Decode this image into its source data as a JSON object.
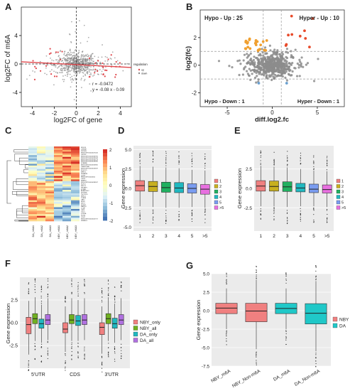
{
  "chart_data": [
    {
      "panel": "A",
      "type": "scatter",
      "xlabel": "log2FC of gene",
      "ylabel": "log2FC of m6A",
      "xlim": [
        -5,
        5
      ],
      "ylim": [
        -6,
        8
      ],
      "xticks": [
        "-4",
        "-2",
        "0",
        "2",
        "4"
      ],
      "yticks": [
        "-4",
        "0",
        "4"
      ],
      "annotation_r": "r = -0.0472",
      "annotation_eq": "y = -0.08 x - 0.09",
      "legend_title": "regulation",
      "legend_items": [
        "up",
        "down"
      ],
      "regression_slope": -0.08,
      "regression_intercept": -0.09,
      "colors": {
        "points": "#8a8a8a",
        "highlight": "#e0474c",
        "line": "#e0474c"
      }
    },
    {
      "panel": "B",
      "type": "scatter",
      "xlabel": "diff.log2.fc",
      "ylabel": "log2(fc)",
      "xlim": [
        -8,
        8
      ],
      "ylim": [
        -3,
        4
      ],
      "xticks": [
        "-5",
        "0",
        "5"
      ],
      "yticks": [
        "-2",
        "0",
        "2"
      ],
      "quadrants": [
        "Hypo - Up : 25",
        "Hyper - Up : 10",
        "Hypo - Down : 1",
        "Hyper - Down : 1"
      ],
      "colors": {
        "points": "#8c8c8c",
        "hypo_up": "#f0a030",
        "hyper_up": "#e84a2a"
      }
    },
    {
      "panel": "C",
      "type": "heatmap",
      "rows": [
        "RGS14",
        "CHRNE",
        "ZBTB20",
        "ENSSCRT00000027445",
        "CNTN5",
        "ENSSCRT00000034765",
        "ENSSCRT00000035548",
        "ENSSCRT00000030143",
        "ENSSCRT00000028390",
        "SCARA5",
        "ENSSCRT00000032850",
        "TMEM176A",
        "ENSSCRT00000025947",
        "KLHDC1",
        "MRPL1",
        "SEMA7A",
        "CDH3",
        "ENSSCRT00000001",
        "OSTN",
        "NMRK2",
        "ENSSCRT00000036947",
        "KLHL6",
        "MFCL1",
        "SRGAP1",
        "KCNB1",
        "ADAMTS12",
        "SPTBN5",
        "TBC1D15",
        "NHSL1",
        "TUBB6",
        "GAT1",
        "RFX8",
        "KIF17",
        "FOXD1",
        "MAPK4",
        "CLMP",
        "GRIK",
        "GJC2",
        "STK38L",
        "PLIN3",
        "CDH7",
        "ENSSCRT00000041757",
        "DIRREL1"
      ],
      "columns": [
        "DA_m6A1",
        "DA_m6A2",
        "DA_m6A3",
        "NBY_m6A1",
        "NBY_m6A2",
        "NBY_m6A3"
      ],
      "scale_ticks": [
        "2",
        "1",
        "0",
        "-1",
        "-2"
      ],
      "colors": {
        "high": "#d73027",
        "mid": "#ffffbf",
        "low": "#4575b4"
      }
    },
    {
      "panel": "D",
      "type": "box",
      "categories": [
        "1",
        "2",
        "3",
        "4",
        "5",
        ">5"
      ],
      "ylabel": "Gene expression",
      "ylim": [
        -5.5,
        5.5
      ],
      "yticks": [
        "-5.0",
        "-2.5",
        "0.0",
        "2.5",
        "5.0"
      ],
      "legend_items": [
        "1",
        "2",
        "3",
        "4",
        "5",
        ">5"
      ],
      "stats": [
        {
          "q1": -0.35,
          "median": 0.35,
          "q3": 1.0,
          "wlo": -2.3,
          "whi": 2.9
        },
        {
          "q1": -0.4,
          "median": 0.25,
          "q3": 0.9,
          "wlo": -2.4,
          "whi": 2.8
        },
        {
          "q1": -0.5,
          "median": 0.1,
          "q3": 0.8,
          "wlo": -2.5,
          "whi": 2.7
        },
        {
          "q1": -0.55,
          "median": 0.05,
          "q3": 0.75,
          "wlo": -2.5,
          "whi": 2.6
        },
        {
          "q1": -0.6,
          "median": 0.0,
          "q3": 0.6,
          "wlo": -2.4,
          "whi": 2.4
        },
        {
          "q1": -0.75,
          "median": -0.1,
          "q3": 0.5,
          "wlo": -2.5,
          "whi": 2.3
        }
      ],
      "colors": [
        "#f08080",
        "#c8b020",
        "#20b060",
        "#20b8c0",
        "#7a9cf0",
        "#e870e0"
      ]
    },
    {
      "panel": "E",
      "type": "box",
      "categories": [
        "1",
        "2",
        "3",
        "4",
        "5",
        ">5"
      ],
      "ylabel": "Gene expression",
      "ylim": [
        -5.5,
        5.5
      ],
      "yticks": [
        "-2.5",
        "0.0",
        "2.5"
      ],
      "legend_items": [
        "1",
        "2",
        "3",
        "4",
        "5",
        ">5"
      ],
      "stats": [
        {
          "q1": -0.35,
          "median": 0.3,
          "q3": 1.0,
          "wlo": -2.3,
          "whi": 2.9
        },
        {
          "q1": -0.35,
          "median": 0.25,
          "q3": 0.95,
          "wlo": -2.3,
          "whi": 2.8
        },
        {
          "q1": -0.4,
          "median": 0.2,
          "q3": 0.85,
          "wlo": -2.4,
          "whi": 2.7
        },
        {
          "q1": -0.45,
          "median": 0.05,
          "q3": 0.65,
          "wlo": -2.3,
          "whi": 2.5
        },
        {
          "q1": -0.55,
          "median": -0.1,
          "q3": 0.55,
          "wlo": -2.3,
          "whi": 2.3
        },
        {
          "q1": -0.6,
          "median": -0.15,
          "q3": 0.45,
          "wlo": -2.4,
          "whi": 2.2
        }
      ],
      "colors": [
        "#f08080",
        "#c8b020",
        "#20b060",
        "#20b8c0",
        "#7a9cf0",
        "#e870e0"
      ]
    },
    {
      "panel": "F",
      "type": "box",
      "categories": [
        "5'UTR",
        "CDS",
        "3'UTR"
      ],
      "series_names": [
        "NBY_only",
        "NBY_all",
        "DA_only",
        "DA_all"
      ],
      "ylabel": "Gene expression",
      "ylim": [
        -5,
        5
      ],
      "yticks": [
        "-2.5",
        "0.0",
        "2.5"
      ],
      "stats": [
        [
          {
            "q1": -1.2,
            "median": -0.2,
            "q3": 0.6,
            "wlo": -3.5,
            "whi": 2.4
          },
          {
            "q1": -0.1,
            "median": 0.45,
            "q3": 1.0,
            "wlo": -2.0,
            "whi": 2.8
          },
          {
            "q1": -0.6,
            "median": -0.1,
            "q3": 0.4,
            "wlo": -2.2,
            "whi": 2.0
          },
          {
            "q1": -0.2,
            "median": 0.3,
            "q3": 0.9,
            "wlo": -1.9,
            "whi": 2.7
          }
        ],
        [
          {
            "q1": -1.1,
            "median": -0.7,
            "q3": 0.0,
            "wlo": -3.2,
            "whi": 1.8
          },
          {
            "q1": -0.1,
            "median": 0.3,
            "q3": 0.9,
            "wlo": -2.0,
            "whi": 2.7
          },
          {
            "q1": -0.3,
            "median": 0.2,
            "q3": 0.8,
            "wlo": -2.0,
            "whi": 2.5
          },
          {
            "q1": -0.2,
            "median": 0.3,
            "q3": 0.9,
            "wlo": -1.9,
            "whi": 2.7
          }
        ],
        [
          {
            "q1": -1.3,
            "median": -0.5,
            "q3": 0.0,
            "wlo": -3.4,
            "whi": 1.8
          },
          {
            "q1": -0.1,
            "median": 0.45,
            "q3": 1.0,
            "wlo": -2.0,
            "whi": 2.8
          },
          {
            "q1": -0.6,
            "median": -0.1,
            "q3": 0.5,
            "wlo": -2.2,
            "whi": 2.1
          },
          {
            "q1": -0.2,
            "median": 0.3,
            "q3": 0.9,
            "wlo": -1.9,
            "whi": 2.7
          }
        ]
      ],
      "colors": [
        "#f08080",
        "#70b020",
        "#20b8c0",
        "#b070e0"
      ]
    },
    {
      "panel": "G",
      "type": "box",
      "categories": [
        "NBY_m6A",
        "NBY_Non-m6A",
        "DA_m6A",
        "DA_Non-m6A"
      ],
      "legend_items": [
        "NBY",
        "DA"
      ],
      "ylabel": "Gene expression",
      "ylim": [
        -7.5,
        5.0
      ],
      "yticks": [
        "-7.5",
        "-5.0",
        "-2.5",
        "0.0",
        "2.5",
        "5.0"
      ],
      "stats": [
        {
          "q1": -0.4,
          "median": 0.35,
          "q3": 1.0,
          "wlo": -2.5,
          "whi": 3.0
        },
        {
          "q1": -1.5,
          "median": -0.05,
          "q3": 1.0,
          "wlo": -5.2,
          "whi": 4.2
        },
        {
          "q1": -0.4,
          "median": 0.3,
          "q3": 1.0,
          "wlo": -2.5,
          "whi": 3.0
        },
        {
          "q1": -1.8,
          "median": -0.35,
          "q3": 0.95,
          "wlo": -5.5,
          "whi": 4.0
        }
      ],
      "box_groups": [
        0,
        0,
        1,
        1
      ],
      "colors": [
        "#f08080",
        "#20c8c8"
      ]
    }
  ]
}
